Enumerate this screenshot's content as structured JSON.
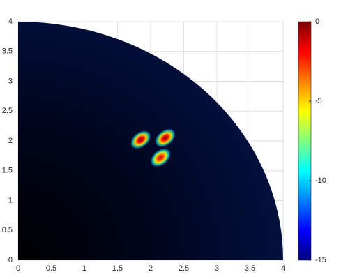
{
  "chart_data": {
    "type": "heatmap",
    "xlim": [
      0,
      4
    ],
    "ylim": [
      0,
      4
    ],
    "xticks": [
      0,
      0.5,
      1,
      1.5,
      2,
      2.5,
      3,
      3.5,
      4
    ],
    "yticks": [
      0,
      0.5,
      1,
      1.5,
      2,
      2.5,
      3,
      3.5,
      4
    ],
    "grid": true,
    "colorbar": {
      "clim": [
        -15,
        0
      ],
      "ticks": [
        0,
        -5,
        -10,
        -15
      ]
    },
    "series": [
      {
        "x": [
          1.85,
          2.22,
          2.15
        ],
        "y": [
          2.02,
          2.05,
          1.72
        ],
        "values": [
          0,
          0,
          -1
        ]
      }
    ]
  }
}
